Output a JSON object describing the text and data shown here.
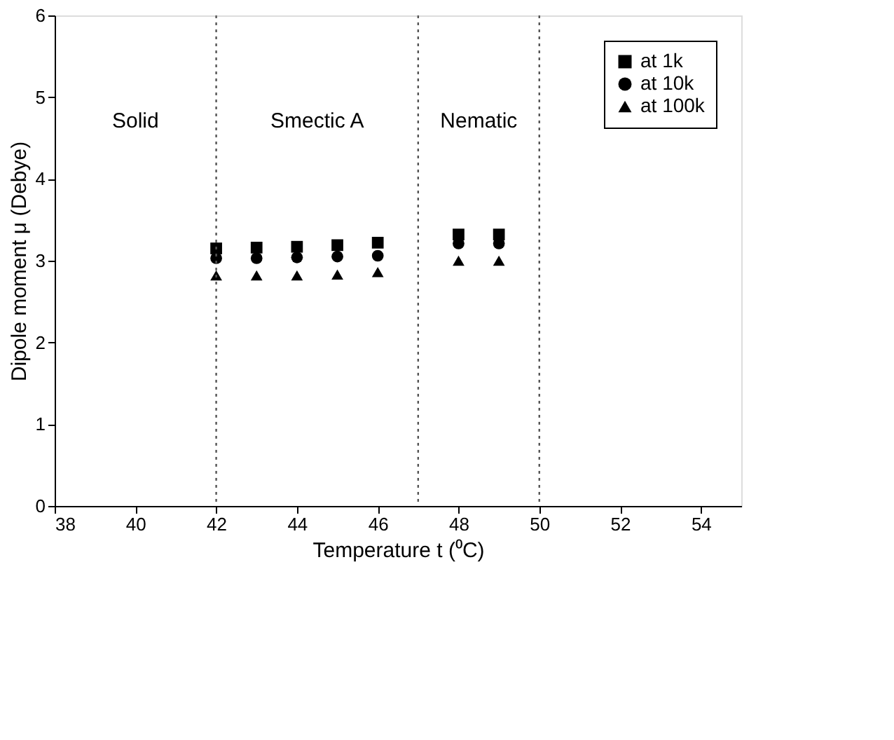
{
  "chart_data": {
    "type": "scatter",
    "xlabel": "Temperature t (⁰C)",
    "ylabel": "Dipole moment μ (Debye)",
    "x": [
      42,
      43,
      44,
      45,
      46,
      48,
      49
    ],
    "series": [
      {
        "name": "at 1k",
        "color": "#000000",
        "marker": "square",
        "values": [
          3.15,
          3.16,
          3.17,
          3.19,
          3.22,
          3.32,
          3.32
        ]
      },
      {
        "name": "at 10k",
        "color": "#000000",
        "marker": "circle",
        "values": [
          3.03,
          3.03,
          3.04,
          3.05,
          3.06,
          3.21,
          3.21
        ]
      },
      {
        "name": "at 100k",
        "color": "#000000",
        "marker": "triangle",
        "values": [
          2.82,
          2.82,
          2.82,
          2.83,
          2.86,
          3.0,
          3.0
        ]
      }
    ],
    "xlim": [
      38,
      55
    ],
    "xticks": [
      38,
      40,
      42,
      44,
      46,
      48,
      50,
      52,
      54
    ],
    "ylim": [
      0,
      6
    ],
    "yticks": [
      0,
      1,
      2,
      3,
      4,
      5,
      6
    ],
    "ref_lines": [
      {
        "axis": "x",
        "value": 42,
        "line_style": "dotted"
      },
      {
        "axis": "x",
        "value": 47,
        "line_style": "dotted"
      },
      {
        "axis": "x",
        "value": 50,
        "line_style": "dotted"
      }
    ],
    "annotations": [
      "Solid",
      "Smectic A",
      "Nematic"
    ],
    "legend": "top right",
    "grid": false
  }
}
